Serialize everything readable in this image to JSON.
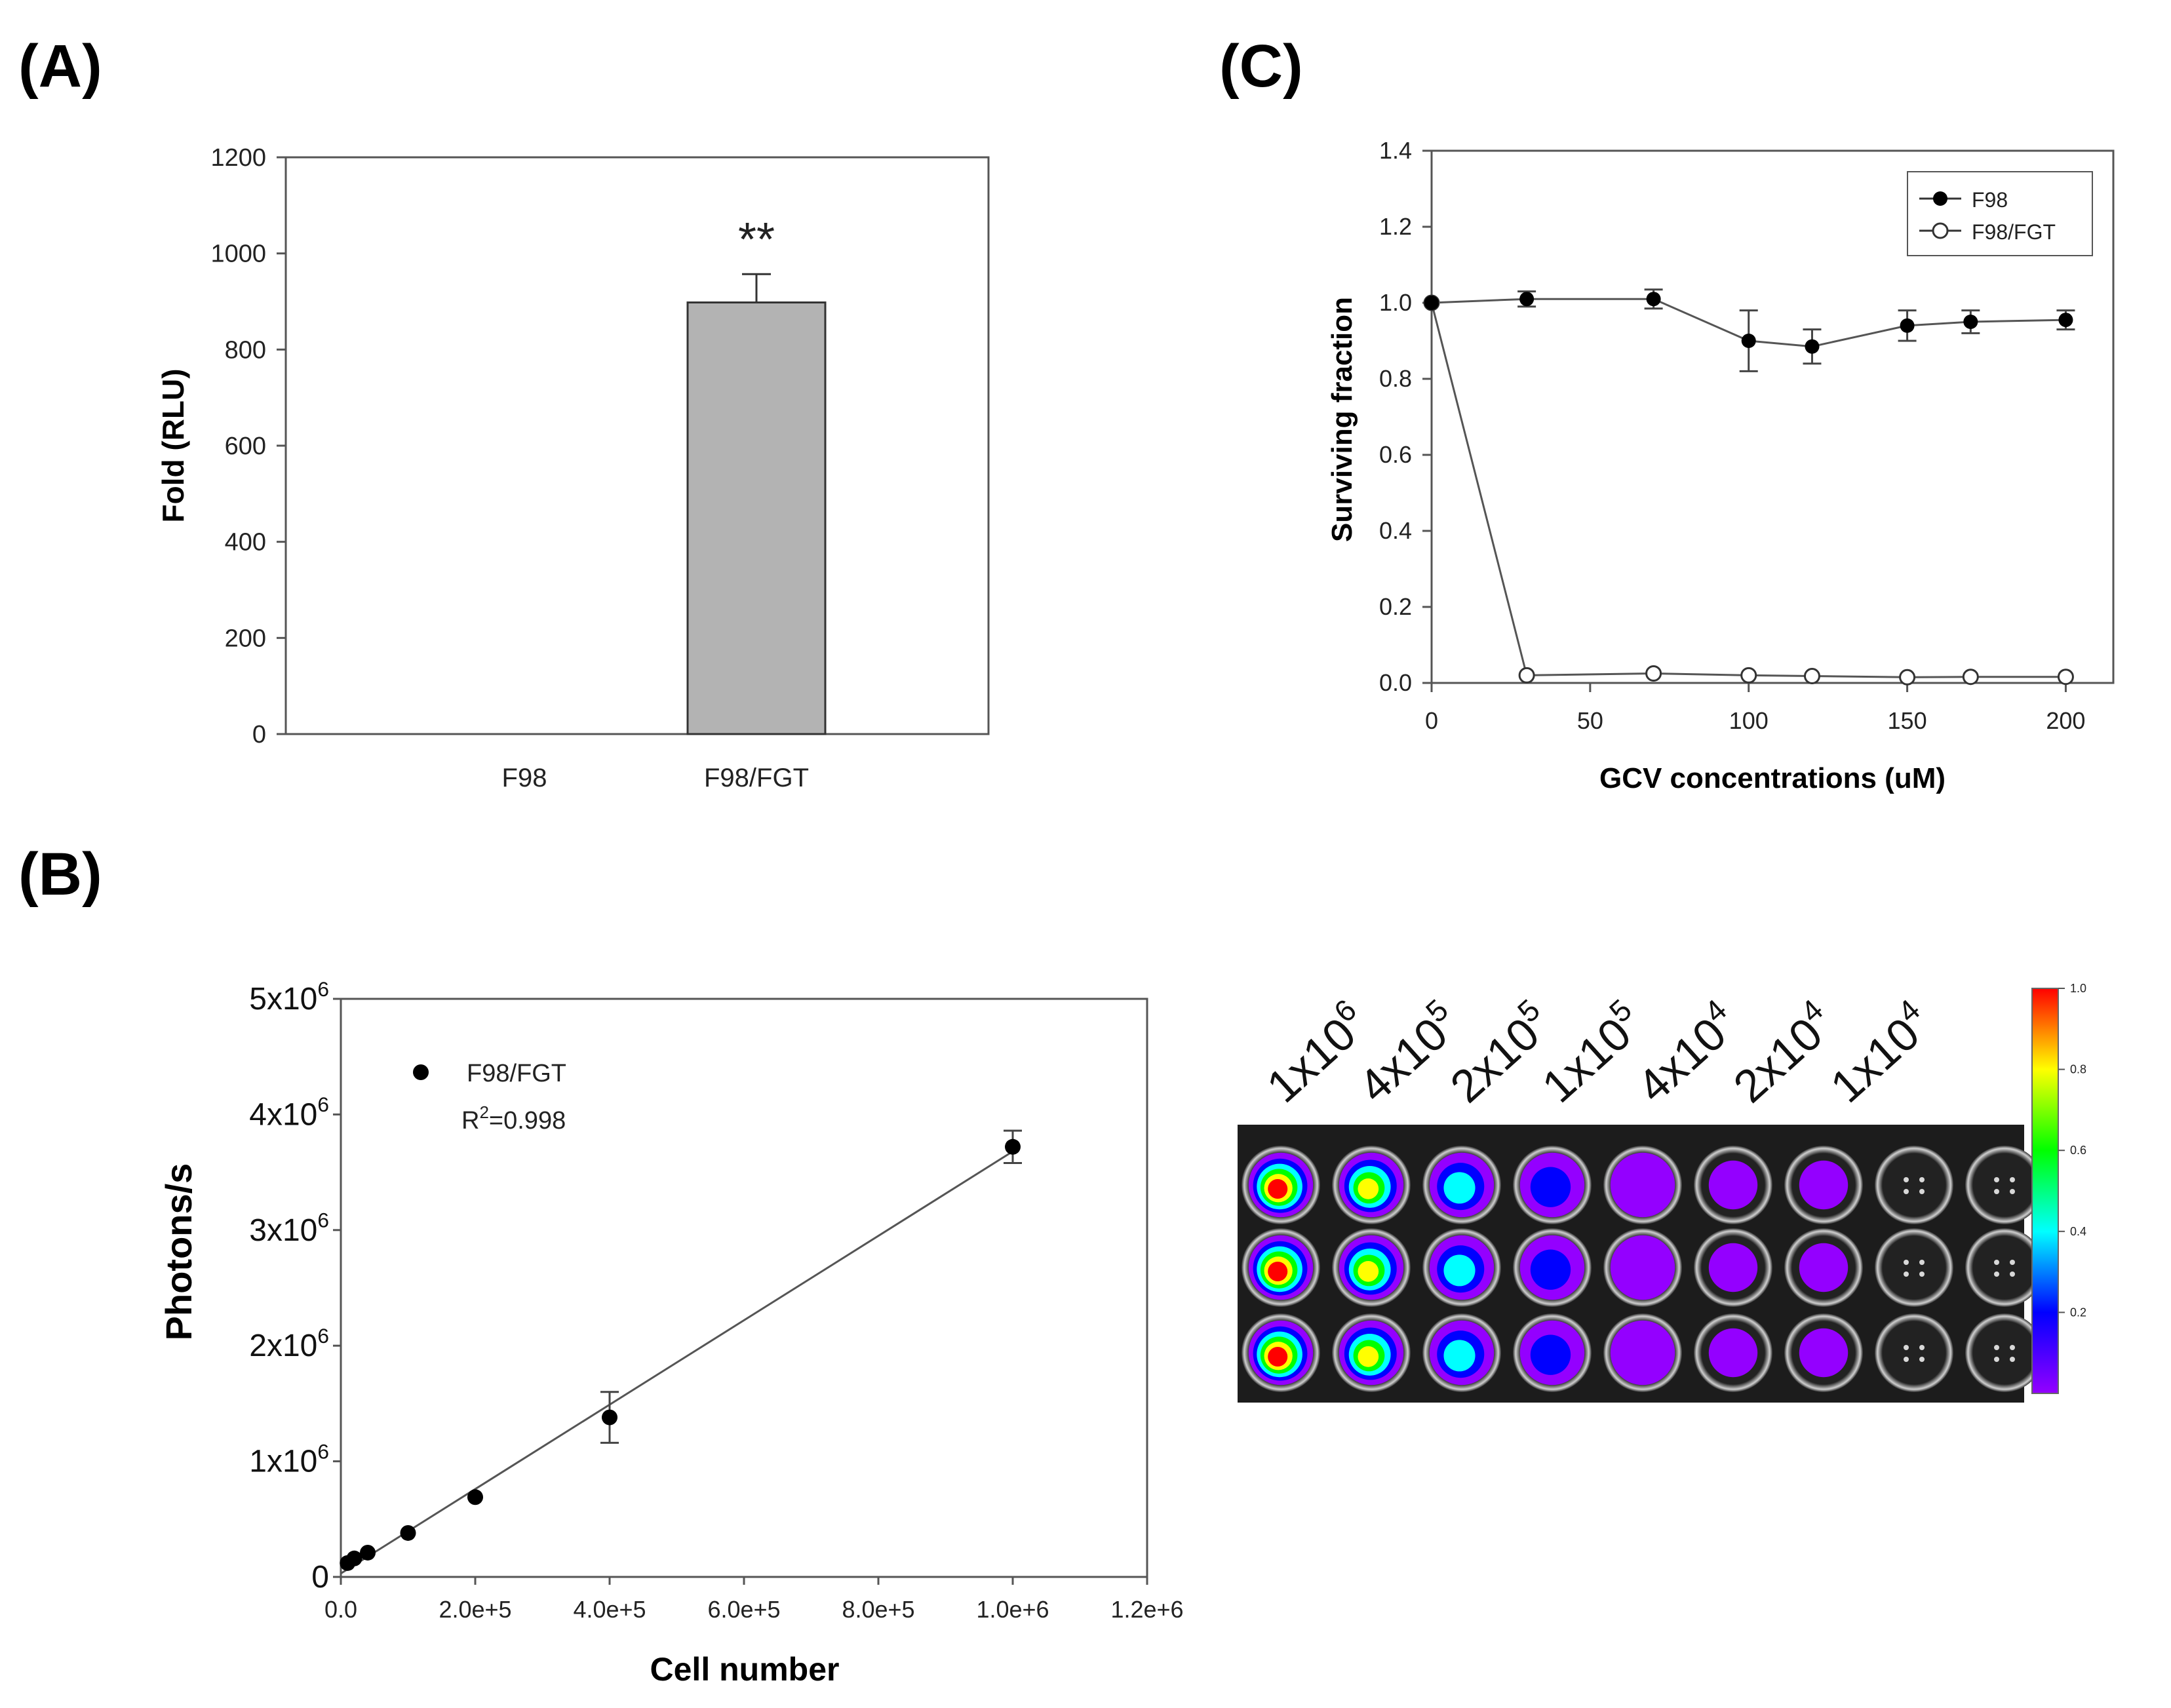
{
  "panels": {
    "A": "(A)",
    "B": "(B)",
    "C": "(C)"
  },
  "chart_data": [
    {
      "id": "A",
      "type": "bar",
      "ylabel": "Fold (RLU)",
      "ylim": [
        0,
        1200
      ],
      "yticks": [
        0,
        200,
        400,
        600,
        800,
        1000,
        1200
      ],
      "categories": [
        "F98",
        "F98/FGT"
      ],
      "values": [
        0,
        898
      ],
      "error_high": [
        0,
        957
      ],
      "annotations": [
        {
          "category": "F98/FGT",
          "text": "**"
        }
      ],
      "colors": {
        "bar": "#b3b3b3"
      }
    },
    {
      "id": "B",
      "type": "scatter",
      "xlabel": "Cell number",
      "ylabel": "Photons/s",
      "xlim": [
        0,
        1200000
      ],
      "xticks": [
        {
          "v": 0,
          "label": "0.0"
        },
        {
          "v": 200000,
          "label": "2.0e+5"
        },
        {
          "v": 400000,
          "label": "4.0e+5"
        },
        {
          "v": 600000,
          "label": "6.0e+5"
        },
        {
          "v": 800000,
          "label": "8.0e+5"
        },
        {
          "v": 1000000,
          "label": "1.0e+6"
        },
        {
          "v": 1200000,
          "label": "1.2e+6"
        }
      ],
      "ylim": [
        0,
        5000000
      ],
      "yticks": [
        {
          "v": 0,
          "base": "0",
          "exp": ""
        },
        {
          "v": 1000000,
          "base": "1x10",
          "exp": "6"
        },
        {
          "v": 2000000,
          "base": "2x10",
          "exp": "6"
        },
        {
          "v": 3000000,
          "base": "3x10",
          "exp": "6"
        },
        {
          "v": 4000000,
          "base": "4x10",
          "exp": "6"
        },
        {
          "v": 5000000,
          "base": "5x10",
          "exp": "6"
        }
      ],
      "series": [
        {
          "name": "F98/FGT",
          "x": [
            10000,
            20000,
            40000,
            100000,
            200000,
            400000,
            1000000
          ],
          "y": [
            120000,
            160000,
            210000,
            380000,
            690000,
            1380000,
            3720000
          ],
          "err": [
            0,
            0,
            0,
            0,
            0,
            220000,
            140000
          ]
        }
      ],
      "fit": {
        "x": [
          0,
          1000000
        ],
        "y": [
          30000,
          3680000
        ]
      },
      "r2": {
        "base": "R",
        "exp": "2",
        "rest": "=0.998"
      }
    },
    {
      "id": "C",
      "type": "line",
      "xlabel": "GCV concentrations (uM)",
      "ylabel": "Surviving fraction",
      "xlim": [
        0,
        215
      ],
      "xticks": [
        0,
        50,
        100,
        150,
        200
      ],
      "ylim": [
        0,
        1.4
      ],
      "yticks": [
        "0.0",
        "0.2",
        "0.4",
        "0.6",
        "0.8",
        "1.0",
        "1.2",
        "1.4"
      ],
      "legend": "top-right",
      "series": [
        {
          "name": "F98",
          "marker": "filled",
          "x": [
            0,
            30,
            70,
            100,
            120,
            150,
            170,
            200
          ],
          "y": [
            1.0,
            1.01,
            1.01,
            0.9,
            0.885,
            0.94,
            0.95,
            0.955
          ],
          "err": [
            0,
            0.02,
            0.025,
            0.08,
            0.045,
            0.04,
            0.03,
            0.025
          ]
        },
        {
          "name": "F98/FGT",
          "marker": "open",
          "x": [
            0,
            30,
            70,
            100,
            120,
            150,
            170,
            200
          ],
          "y": [
            1.0,
            0.02,
            0.025,
            0.02,
            0.018,
            0.015,
            0.016,
            0.016
          ],
          "err": [
            0,
            0,
            0,
            0,
            0,
            0,
            0,
            0
          ]
        }
      ]
    }
  ],
  "image_panel": {
    "column_labels": [
      {
        "base": "1x10",
        "exp": "6"
      },
      {
        "base": "4x10",
        "exp": "5"
      },
      {
        "base": "2x10",
        "exp": "5"
      },
      {
        "base": "1x10",
        "exp": "5"
      },
      {
        "base": "4x10",
        "exp": "4"
      },
      {
        "base": "2x10",
        "exp": "4"
      },
      {
        "base": "1x10",
        "exp": "4"
      }
    ],
    "well_signal": [
      1.0,
      0.82,
      0.55,
      0.38,
      0.12,
      0.08,
      0.04,
      0,
      0
    ],
    "colorbar": {
      "ticks": [
        "1.0",
        "0.8",
        "0.6",
        "0.4",
        "0.2"
      ],
      "colors": [
        "#ff0000",
        "#ffff00",
        "#00ff00",
        "#00ffff",
        "#0000ff",
        "#9400ff"
      ]
    }
  }
}
